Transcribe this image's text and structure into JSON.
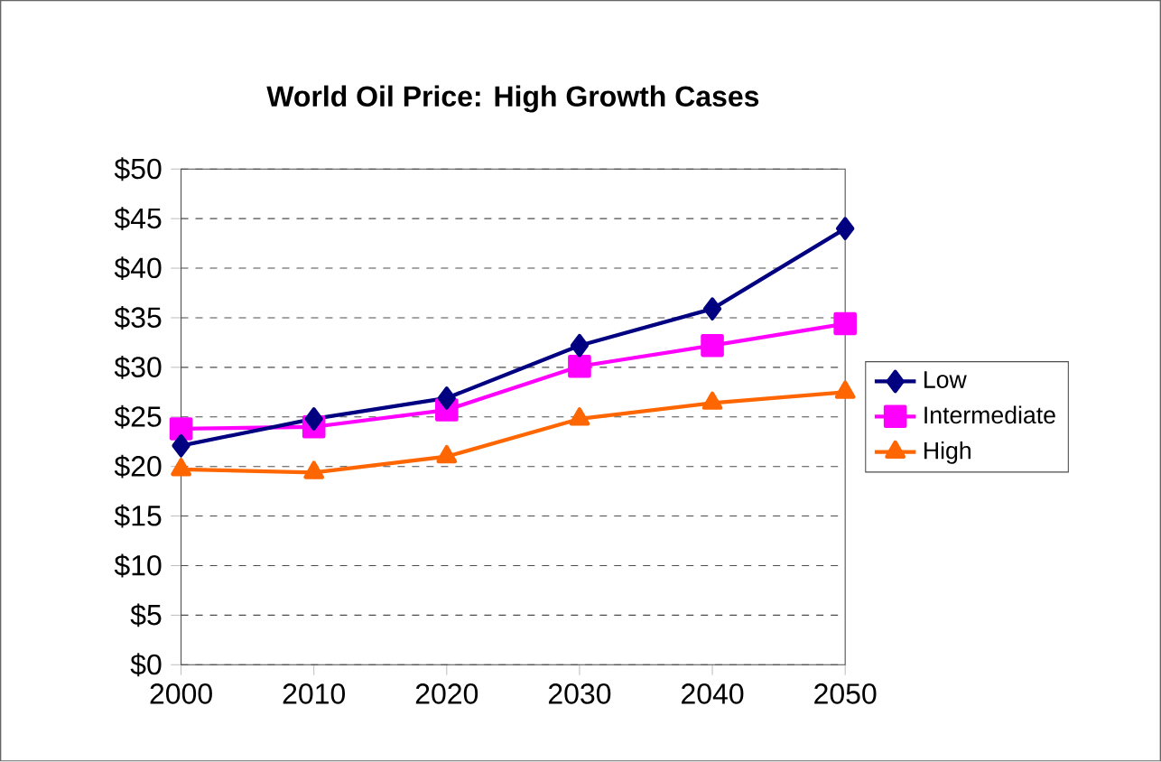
{
  "chart_data": {
    "type": "line",
    "title": "World Oil Price: High Growth Cases",
    "x": [
      2000,
      2010,
      2020,
      2030,
      2040,
      2050
    ],
    "series": [
      {
        "name": "Low",
        "color": "#000080",
        "marker": "diamond",
        "values": [
          22.1,
          24.8,
          26.9,
          32.2,
          35.9,
          44.0
        ]
      },
      {
        "name": "Intermediate",
        "color": "#ff00ff",
        "marker": "square",
        "values": [
          23.8,
          24.0,
          25.7,
          30.1,
          32.2,
          34.4
        ]
      },
      {
        "name": "High",
        "color": "#ff6600",
        "marker": "triangle",
        "values": [
          19.7,
          19.4,
          21.0,
          24.8,
          26.4,
          27.5
        ]
      }
    ],
    "xlim": [
      2000,
      2050
    ],
    "xticks": [
      2000,
      2010,
      2020,
      2030,
      2040,
      2050
    ],
    "ylim": [
      0,
      50
    ],
    "yticks": [
      {
        "value": 0,
        "label": "$0"
      },
      {
        "value": 5,
        "label": "$5"
      },
      {
        "value": 10,
        "label": "$10"
      },
      {
        "value": 15,
        "label": "$15"
      },
      {
        "value": 20,
        "label": "$20"
      },
      {
        "value": 25,
        "label": "$25"
      },
      {
        "value": 30,
        "label": "$30"
      },
      {
        "value": 35,
        "label": "$35"
      },
      {
        "value": 40,
        "label": "$40"
      },
      {
        "value": 45,
        "label": "$45"
      },
      {
        "value": 50,
        "label": "$50"
      }
    ],
    "grid": "y",
    "legend": "right",
    "line_style": "solid"
  }
}
